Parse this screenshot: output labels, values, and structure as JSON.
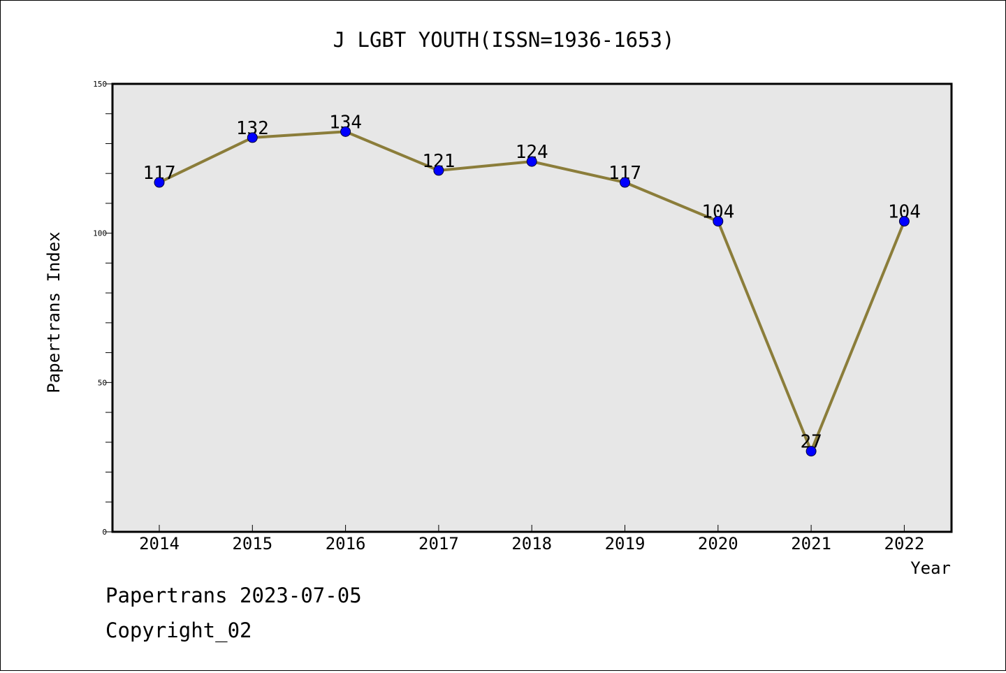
{
  "chart_data": {
    "type": "line",
    "title": "J LGBT YOUTH(ISSN=1936-1653)",
    "xlabel": "Year",
    "ylabel": "Papertrans Index",
    "categories": [
      "2014",
      "2015",
      "2016",
      "2017",
      "2018",
      "2019",
      "2020",
      "2021",
      "2022"
    ],
    "series": [
      {
        "values": [
          117,
          132,
          134,
          121,
          124,
          117,
          104,
          27,
          104
        ]
      }
    ],
    "data_labels": [
      "117",
      "132",
      "134",
      "121",
      "124",
      "117",
      "104",
      "27",
      "104"
    ],
    "ylim": [
      0,
      150
    ],
    "y_ticks": [
      "0",
      "50",
      "100",
      "150"
    ],
    "grid": false,
    "legend": "none",
    "colors": {
      "line": "#8b7d3a",
      "marker": "#0000ff",
      "plot_background": "#e7e7e7"
    }
  },
  "footer": {
    "line1": "Papertrans 2023-07-05",
    "line2": "Copyright_02"
  }
}
